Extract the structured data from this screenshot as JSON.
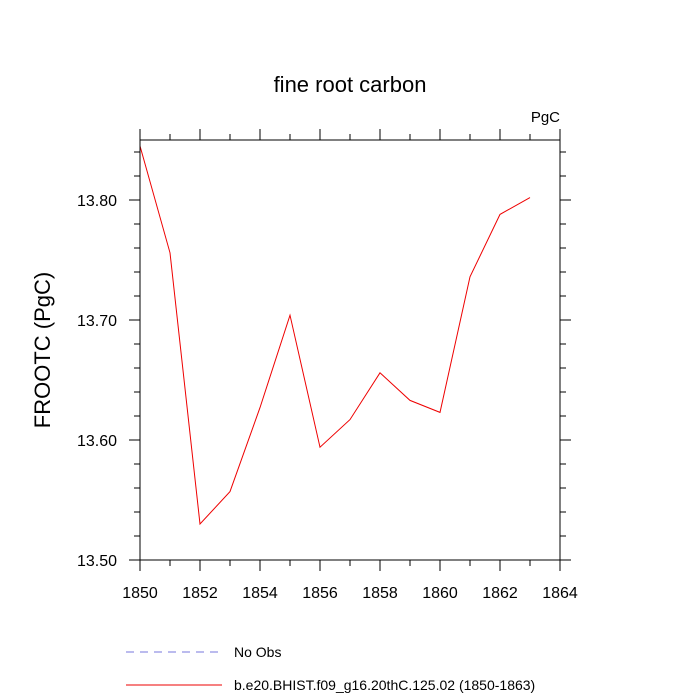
{
  "chart_data": {
    "type": "line",
    "title": "fine root carbon",
    "units_label": "PgC",
    "xlabel": "",
    "ylabel": "FROOTC  (PgC)",
    "xlim": [
      1850,
      1864
    ],
    "ylim": [
      13.5,
      13.85
    ],
    "x_ticks": [
      1850,
      1852,
      1854,
      1856,
      1858,
      1860,
      1862,
      1864
    ],
    "x_tick_labels": [
      "1850",
      "1852",
      "1854",
      "1856",
      "1858",
      "1860",
      "1862",
      "1864"
    ],
    "y_ticks": [
      13.5,
      13.6,
      13.7,
      13.8
    ],
    "y_tick_labels": [
      "13.50",
      "13.60",
      "13.70",
      "13.80"
    ],
    "grid": false,
    "legend_position": "bottom",
    "series": [
      {
        "name": "No Obs",
        "color": "#7777dd",
        "dash": true,
        "x": [],
        "y": []
      },
      {
        "name": "b.e20.BHIST.f09_g16.20thC.125.02 (1850-1863)",
        "color": "#ee0000",
        "dash": false,
        "x": [
          1850,
          1851,
          1852,
          1853,
          1854,
          1855,
          1856,
          1857,
          1858,
          1859,
          1860,
          1861,
          1862,
          1863
        ],
        "y": [
          13.845,
          13.756,
          13.53,
          13.557,
          13.627,
          13.704,
          13.594,
          13.617,
          13.656,
          13.633,
          13.623,
          13.736,
          13.788,
          13.802
        ]
      }
    ]
  }
}
